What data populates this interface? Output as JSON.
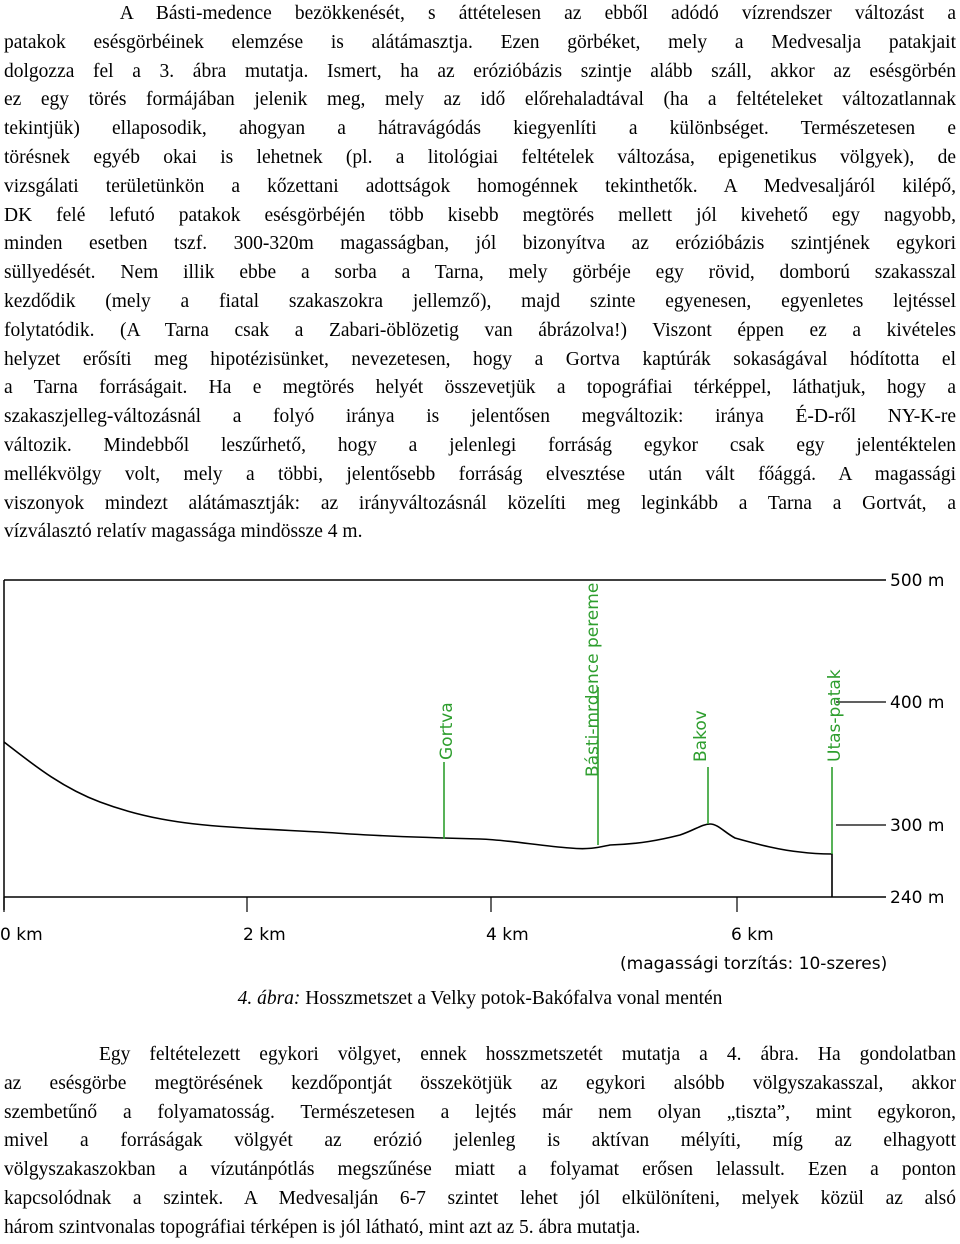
{
  "paragraph1": [
    "     A Básti-medence bezökkenését, s áttételesen az ebből adódó vízrendszer változást a",
    "patakok esésgörbéinek elemzése is alátámasztja.  Ezen görbéket, mely a Medvesalja patakjait",
    "dolgozza fel a 3. ábra mutatja. Ismert, ha az erózióbázis szintje alább száll, akkor az esésgörbén",
    "ez egy törés formájában jelenik meg, mely az idő előrehaladtával (ha a feltételeket változatlannak",
    "tekintjük) ellaposodik, ahogyan a hátravágódás kiegyenlíti a különbséget. Természetesen e",
    "törésnek egyéb okai is lehetnek (pl. a litológiai feltételek változása, epigenetikus völgyek), de",
    "vizsgálati területünkön a kőzettani adottságok homogénnek tekinthetők. A Medvesaljáról kilépő,",
    "DK felé lefutó patakok esésgörbéjén több kisebb megtörés mellett jól kivehető egy nagyobb,",
    "minden esetben tszf. 300-320m magasságban, jól bizonyítva az erózióbázis szintjének egykori",
    "süllyedését. Nem illik ebbe a sorba a Tarna, mely görbéje egy rövid, domború szakasszal",
    "kezdődik (mely a fiatal szakaszokra jellemző), majd szinte egyenesen, egyenletes lejtéssel",
    "folytatódik. (A Tarna csak a Zabari-öblözetig van ábrázolva!) Viszont éppen ez a kivételes",
    "helyzet erősíti meg hipotézisünket, nevezetesen, hogy a Gortva kaptúrák sokaságával hódította el",
    "a Tarna forráságait. Ha e megtörés helyét összevetjük a topográfiai térképpel, láthatjuk, hogy a",
    "szakaszjelleg-változásnál a folyó iránya is jelentősen megváltozik: iránya É-D-ről NY-K-re",
    "változik. Mindebből leszűrhető, hogy a jelenlegi forráság egykor csak egy jelentéktelen",
    "mellékvölgy volt, mely a többi, jelentősebb forráság elvesztése után vált főággá. A magassági",
    "viszonyok mindezt alátámasztják: az irányváltozásnál közelíti meg leginkább a Tarna a Gortvát, a",
    "vízválasztó relatív magassága mindössze 4 m."
  ],
  "figure": {
    "y_labels": [
      "500 m",
      "400 m",
      "300 m",
      "240 m"
    ],
    "x_labels": [
      "0 km",
      "2 km",
      "4 km",
      "6 km"
    ],
    "distortion_note": "(magassági torzítás: 10-szeres)",
    "markers": [
      {
        "label": "Gortva",
        "color": "#2e9e2e"
      },
      {
        "label": "Básti-mrdence pereme",
        "color": "#2e9e2e"
      },
      {
        "label": "Bakov",
        "color": "#2e9e2e"
      },
      {
        "label": "Utas-patak",
        "color": "#2e9e2e"
      }
    ]
  },
  "caption": {
    "number": "4. ábra:",
    "text": " Hosszmetszet a Velky potok-Bakófalva vonal mentén"
  },
  "paragraph2": [
    "     Egy feltételezett egykori völgyet, ennek hosszmetszetét mutatja a 4. ábra. Ha gondolatban",
    "az esésgörbe megtörésének kezdőpontját összekötjük az egykori alsóbb völgyszakasszal, akkor",
    "szembetűnő a folyamatosság. Természetesen a lejtés már nem olyan „tiszta”, mint egykoron,",
    "mivel a forráságak völgyét az erózió jelenleg is aktívan mélyíti, míg az elhagyott",
    "völgyszakaszokban a vízutánpótlás megszűnése miatt a folyamat erősen lelassult. Ezen a ponton",
    "kapcsolódnak a szintek. A Medvesalján 6-7 szintet lehet jól elkülöníteni, melyek közül az alsó",
    "három szintvonalas topográfiai térképen is jól látható, mint azt az 5. ábra mutatja."
  ]
}
